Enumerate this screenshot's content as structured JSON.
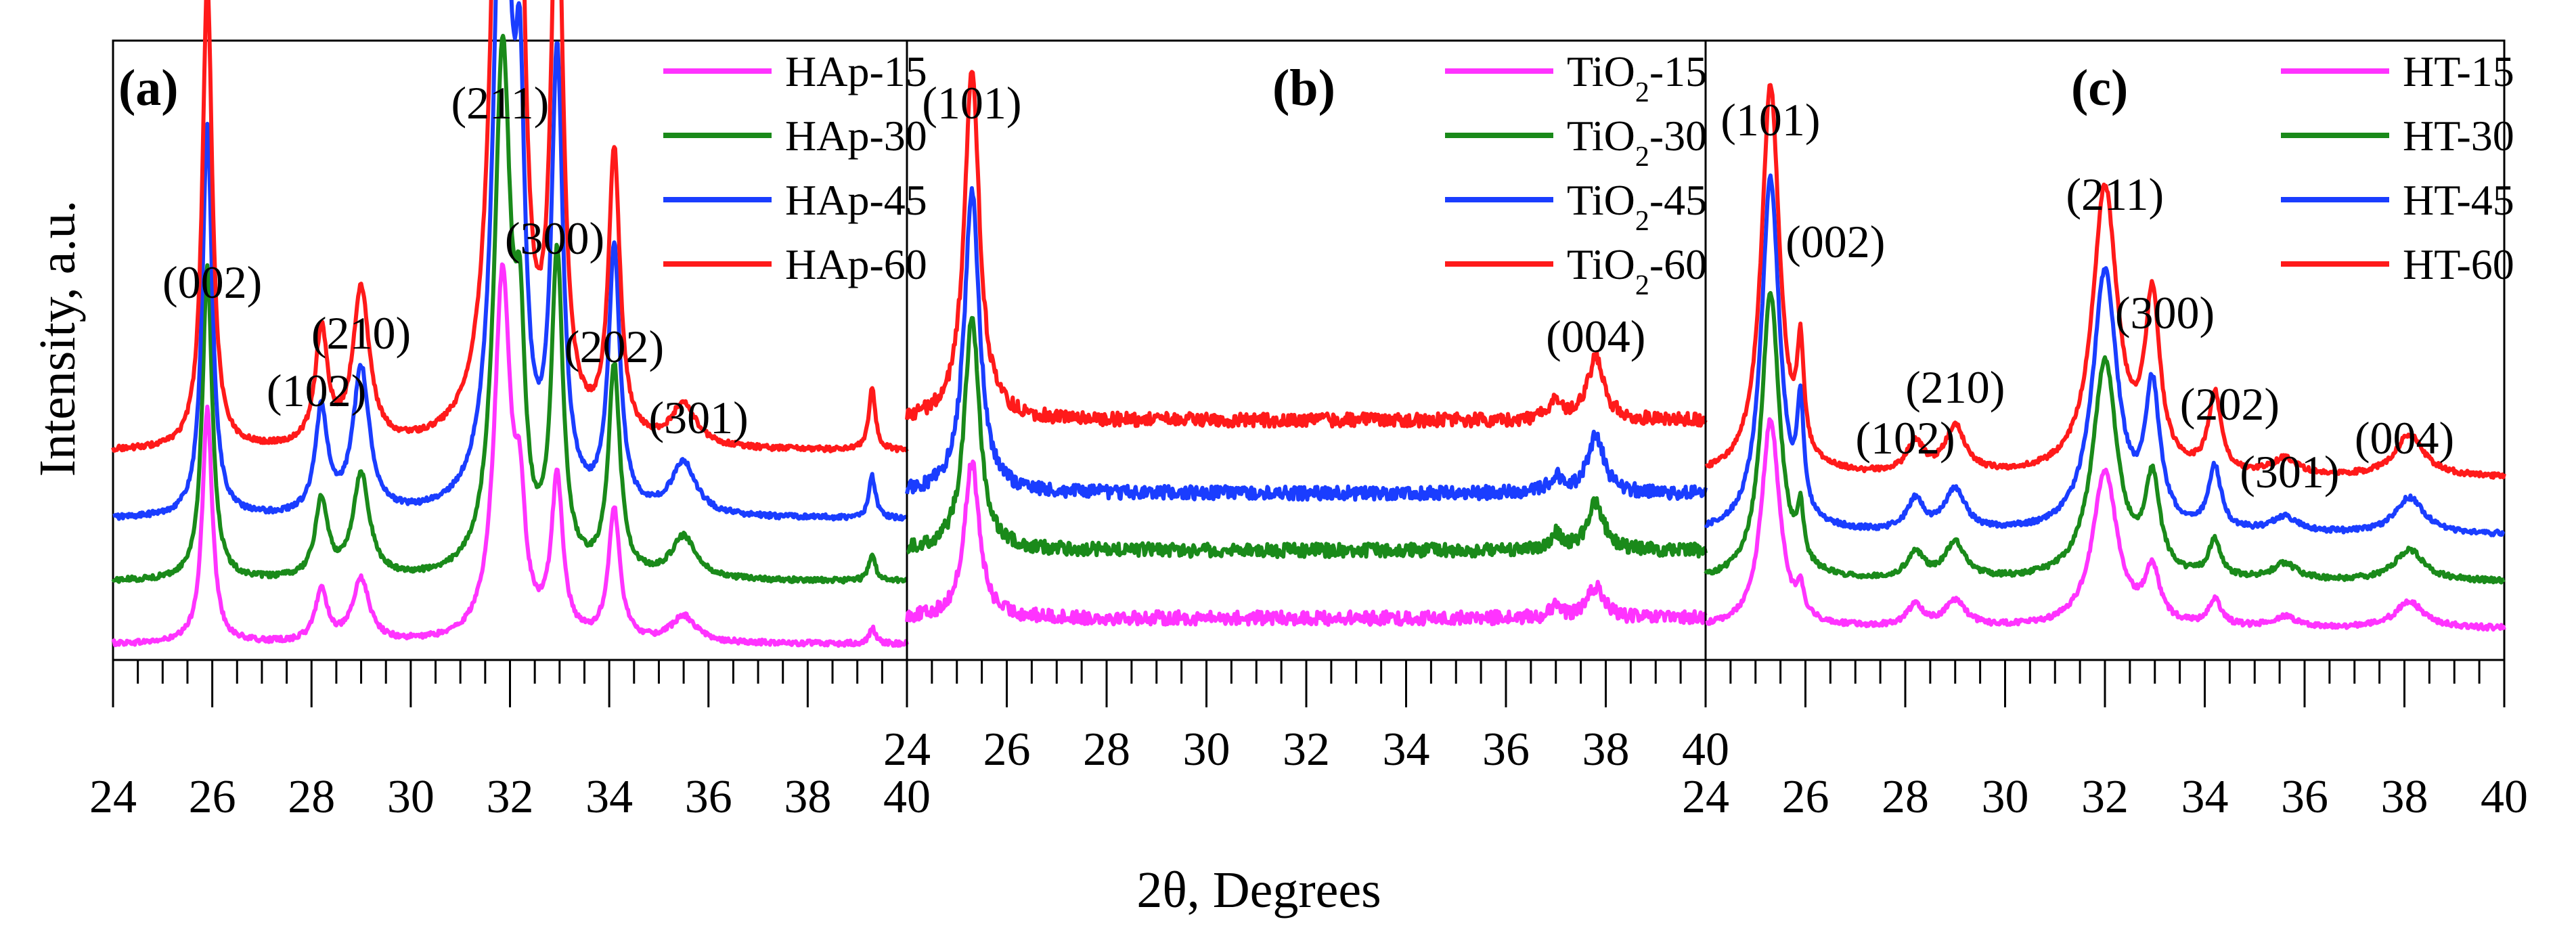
{
  "figure": {
    "ylabel": "Intensity, a.u.",
    "xlabel": "2θ, Degrees",
    "colors": {
      "c15": "#ff33ff",
      "c30": "#1a8a1a",
      "c45": "#1a3dff",
      "c60": "#ff1a1a",
      "axis": "#000000"
    }
  },
  "chart_data": [
    {
      "type": "line",
      "panel": "(a)",
      "title": "(a)",
      "xlim": [
        24,
        40
      ],
      "xticks": [
        "24",
        "26",
        "28",
        "30",
        "32",
        "34",
        "36",
        "38",
        "40"
      ],
      "xlabel": "2θ, Degrees",
      "ylabel": "Intensity, a.u.",
      "legend": [
        {
          "name": "HAp-15",
          "color": "#ff33ff"
        },
        {
          "name": "HAp-30",
          "color": "#1a8a1a"
        },
        {
          "name": "HAp-45",
          "color": "#1a3dff"
        },
        {
          "name": "HAp-60",
          "color": "#ff1a1a"
        }
      ],
      "annotations": [
        {
          "text": "(002)",
          "x": 26.0
        },
        {
          "text": "(102)",
          "x": 28.1
        },
        {
          "text": "(210)",
          "x": 29.0
        },
        {
          "text": "(211)",
          "x": 31.8
        },
        {
          "text": "(300)",
          "x": 32.9
        },
        {
          "text": "(202)",
          "x": 34.1
        },
        {
          "text": "(301)",
          "x": 35.8
        }
      ],
      "peaks": [
        {
          "x": 25.9,
          "w": 0.12,
          "h": [
            45,
            60,
            75,
            90
          ]
        },
        {
          "x": 28.2,
          "w": 0.15,
          "h": [
            10,
            15,
            20,
            22
          ]
        },
        {
          "x": 29.0,
          "w": 0.2,
          "h": [
            12,
            20,
            28,
            30
          ]
        },
        {
          "x": 31.85,
          "w": 0.2,
          "h": [
            70,
            100,
            140,
            190
          ]
        },
        {
          "x": 32.2,
          "w": 0.12,
          "h": [
            20,
            35,
            60,
            80
          ]
        },
        {
          "x": 32.95,
          "w": 0.14,
          "h": [
            30,
            60,
            85,
            110
          ]
        },
        {
          "x": 34.1,
          "w": 0.14,
          "h": [
            25,
            40,
            50,
            55
          ]
        },
        {
          "x": 35.5,
          "w": 0.3,
          "h": [
            5,
            8,
            10,
            8
          ]
        },
        {
          "x": 39.3,
          "w": 0.08,
          "h": [
            3,
            5,
            8,
            12
          ]
        }
      ],
      "series": [
        {
          "name": "HAp-15",
          "baseline": 3
        },
        {
          "name": "HAp-30",
          "baseline": 15
        },
        {
          "name": "HAp-45",
          "baseline": 27
        },
        {
          "name": "HAp-60",
          "baseline": 40
        }
      ],
      "ylim": [
        0,
        100
      ]
    },
    {
      "type": "line",
      "panel": "(b)",
      "title": "(b)",
      "xlim": [
        24,
        40
      ],
      "xticks": [
        "24",
        "26",
        "28",
        "30",
        "32",
        "34",
        "36",
        "38",
        "40"
      ],
      "xlabel": "2θ, Degrees",
      "legend": [
        {
          "name": "TiO",
          "sub": "2",
          "suffix": "-15",
          "color": "#ff33ff"
        },
        {
          "name": "TiO",
          "sub": "2",
          "suffix": "-30",
          "color": "#1a8a1a"
        },
        {
          "name": "TiO",
          "sub": "2",
          "suffix": "-45",
          "color": "#1a3dff"
        },
        {
          "name": "TiO",
          "sub": "2",
          "suffix": "-60",
          "color": "#ff1a1a"
        }
      ],
      "annotations": [
        {
          "text": "(101)",
          "x": 25.3
        },
        {
          "text": "(004)",
          "x": 37.8
        }
      ],
      "peaks": [
        {
          "x": 25.3,
          "w": 0.18,
          "h": [
            30,
            45,
            58,
            68
          ]
        },
        {
          "x": 37.8,
          "w": 0.2,
          "h": [
            6,
            9,
            11,
            12
          ]
        },
        {
          "x": 37.0,
          "w": 0.15,
          "h": [
            2,
            3,
            3,
            4
          ]
        }
      ],
      "series": [
        {
          "name": "TiO2-15",
          "baseline": 8
        },
        {
          "name": "TiO2-30",
          "baseline": 21
        },
        {
          "name": "TiO2-45",
          "baseline": 32
        },
        {
          "name": "TiO2-60",
          "baseline": 46
        }
      ],
      "ylim": [
        0,
        100
      ]
    },
    {
      "type": "line",
      "panel": "(c)",
      "title": "(c)",
      "xlim": [
        24,
        40
      ],
      "xticks": [
        "24",
        "26",
        "28",
        "30",
        "32",
        "34",
        "36",
        "38",
        "40"
      ],
      "xlabel": "2θ, Degrees",
      "legend": [
        {
          "name": "HT-15",
          "color": "#ff33ff"
        },
        {
          "name": "HT-30",
          "color": "#1a8a1a"
        },
        {
          "name": "HT-45",
          "color": "#1a3dff"
        },
        {
          "name": "HT-60",
          "color": "#ff1a1a"
        }
      ],
      "annotations": [
        {
          "text": "(101)",
          "x": 25.3
        },
        {
          "text": "(002)",
          "x": 26.6
        },
        {
          "text": "(102)",
          "x": 28.0
        },
        {
          "text": "(210)",
          "x": 29.0
        },
        {
          "text": "(211)",
          "x": 32.2
        },
        {
          "text": "(300)",
          "x": 33.2
        },
        {
          "text": "(202)",
          "x": 34.5
        },
        {
          "text": "(301)",
          "x": 35.7
        },
        {
          "text": "(004)",
          "x": 38.0
        }
      ],
      "peaks": [
        {
          "x": 25.3,
          "w": 0.22,
          "h": [
            40,
            55,
            68,
            75
          ]
        },
        {
          "x": 25.9,
          "w": 0.08,
          "h": [
            5,
            10,
            20,
            20
          ]
        },
        {
          "x": 28.2,
          "w": 0.2,
          "h": [
            4,
            5,
            6,
            6
          ]
        },
        {
          "x": 29.0,
          "w": 0.25,
          "h": [
            5,
            7,
            8,
            9
          ]
        },
        {
          "x": 32.0,
          "w": 0.3,
          "h": [
            30,
            42,
            50,
            55
          ]
        },
        {
          "x": 32.95,
          "w": 0.18,
          "h": [
            10,
            18,
            26,
            32
          ]
        },
        {
          "x": 34.2,
          "w": 0.15,
          "h": [
            5,
            7,
            12,
            15
          ]
        },
        {
          "x": 35.6,
          "w": 0.3,
          "h": [
            2,
            3,
            3,
            3
          ]
        },
        {
          "x": 38.1,
          "w": 0.35,
          "h": [
            5,
            6,
            7,
            8
          ]
        }
      ],
      "series": [
        {
          "name": "HT-15",
          "baseline": 6
        },
        {
          "name": "HT-30",
          "baseline": 15
        },
        {
          "name": "HT-45",
          "baseline": 24
        },
        {
          "name": "HT-60",
          "baseline": 35
        }
      ],
      "ylim": [
        0,
        100
      ]
    }
  ]
}
